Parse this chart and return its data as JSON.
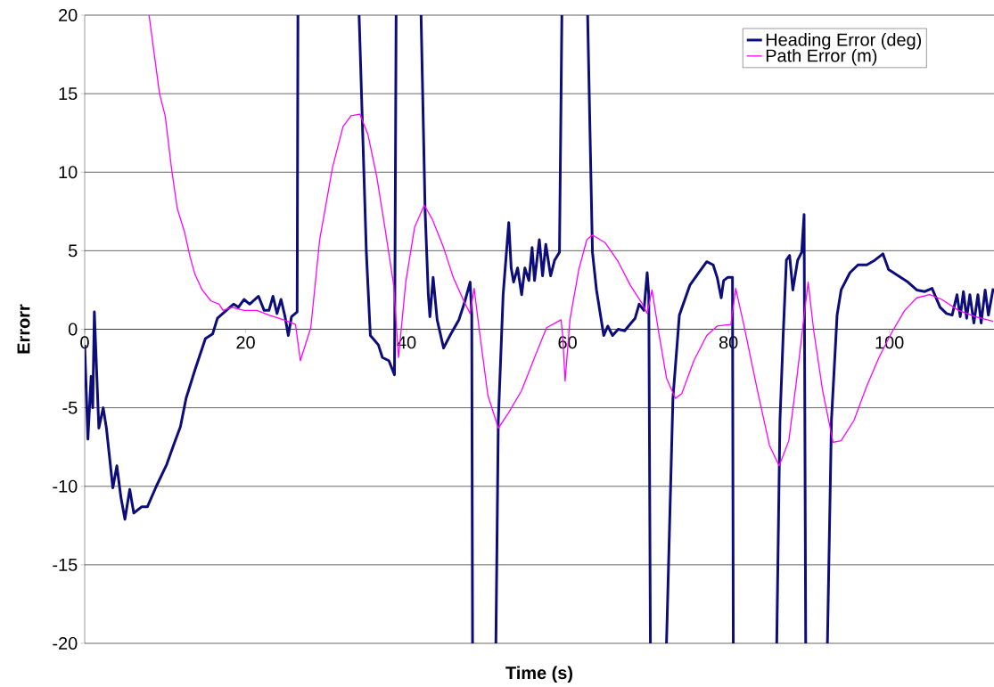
{
  "chart_data": {
    "type": "line",
    "xlabel": "Time (s)",
    "ylabel": "Errorr",
    "xlim": [
      0,
      113
    ],
    "ylim": [
      -20,
      20
    ],
    "xticks": [
      0,
      20,
      40,
      60,
      80,
      100
    ],
    "yticks": [
      -20,
      -15,
      -10,
      -5,
      0,
      5,
      10,
      15,
      20
    ],
    "grid": "y",
    "legend": "top right",
    "series": [
      {
        "name": "Heading Error (deg)",
        "color": "#0c0c7a",
        "x": [
          0,
          0.4,
          0.8,
          1.0,
          1.2,
          1.76,
          2.3,
          2.7,
          3.5,
          4.0,
          4.5,
          5.0,
          5.6,
          6.1,
          7.1,
          7.8,
          8.9,
          10.2,
          11.1,
          11.9,
          12.6,
          13.7,
          15.0,
          15.9,
          16.5,
          17.6,
          18.5,
          19.1,
          19.8,
          20.5,
          21.6,
          22.3,
          22.9,
          23.4,
          23.9,
          24.4,
          24.9,
          25.3,
          25.7,
          26.4,
          26.5,
          30,
          34.1,
          35.0,
          35.5,
          36.0,
          36.5,
          37.0,
          37.8,
          38.5,
          38.7,
          40,
          41.8,
          42.3,
          42.7,
          42.9,
          43.3,
          43.8,
          44.6,
          45.4,
          46.5,
          47.2,
          47.9,
          48.1,
          48.2,
          50,
          51.1,
          51.4,
          52.0,
          52.7,
          53.0,
          53.3,
          53.8,
          54.3,
          54.7,
          55.2,
          55.6,
          55.9,
          56.5,
          56.9,
          57.3,
          57.9,
          58.4,
          59.0,
          59.3,
          61,
          62.5,
          63.1,
          63.6,
          64.5,
          65.0,
          65.6,
          66.3,
          67.1,
          67.9,
          68.4,
          68.9,
          69.5,
          69.9,
          70.1,
          70.3,
          71,
          72.3,
          73.1,
          73.9,
          75.2,
          76.3,
          77.3,
          78.1,
          78.6,
          79.1,
          79.4,
          79.9,
          80.5,
          80.6,
          83,
          86.0,
          86.4,
          86.8,
          87.2,
          87.6,
          88.0,
          88.6,
          89.1,
          89.4,
          89.6,
          91,
          92.3,
          92.8,
          93.5,
          94.0,
          95.1,
          96.1,
          97.2,
          98.2,
          99.2,
          99.9,
          101.1,
          102.3,
          103.4,
          104.4,
          105.3,
          106.3,
          107.1,
          107.8,
          108.4,
          108.8,
          109.2,
          109.6,
          110.0,
          110.5,
          111.0,
          111.4,
          111.9,
          112.3,
          112.9
        ],
        "values": [
          -1,
          -7,
          -3,
          -5,
          1.1,
          -6.3,
          -5.0,
          -6.3,
          -10.1,
          -8.7,
          -10.7,
          -12.1,
          -10.2,
          -11.7,
          -11.3,
          -11.3,
          -10.0,
          -8.6,
          -7.3,
          -6.2,
          -4.4,
          -2.6,
          -0.6,
          -0.3,
          0.7,
          1.2,
          1.6,
          1.4,
          1.9,
          1.6,
          2.1,
          1.2,
          1.2,
          2.1,
          1.0,
          1.9,
          0.8,
          -0.4,
          0.8,
          1.1,
          20,
          null,
          20,
          4.9,
          -0.4,
          -0.7,
          -1.0,
          -1.8,
          -2.0,
          -2.9,
          20,
          null,
          20,
          7.6,
          2.2,
          0.8,
          3.3,
          0.6,
          -1.2,
          -0.4,
          0.6,
          1.7,
          3.0,
          0.9,
          -20,
          null,
          -20,
          -5.8,
          2.2,
          6.8,
          3.9,
          3.0,
          3.9,
          2.2,
          3.9,
          3.1,
          5.2,
          3.1,
          5.7,
          3.4,
          5.4,
          3.4,
          4.4,
          4.9,
          20,
          null,
          20,
          4.9,
          2.5,
          -0.4,
          0.2,
          -0.4,
          0,
          -0.1,
          0.4,
          0.7,
          1.6,
          1.2,
          3.6,
          2.2,
          -20,
          null,
          -20,
          -4.4,
          0.9,
          2.8,
          3.6,
          4.3,
          4.1,
          3.3,
          2.0,
          3.1,
          3.3,
          3.3,
          -20,
          null,
          -20,
          -5.8,
          -0.4,
          4.4,
          4.7,
          2.5,
          4.4,
          4.9,
          7.3,
          -20,
          null,
          -20,
          -5.8,
          0.9,
          2.5,
          3.6,
          4.1,
          4.1,
          4.4,
          4.8,
          3.8,
          3.4,
          3.0,
          2.5,
          2.4,
          2.6,
          1.4,
          1.0,
          0.9,
          2.2,
          0.8,
          2.4,
          0.7,
          2.2,
          0.4,
          2.2,
          0.4,
          2.5,
          0.9,
          2.6
        ]
      },
      {
        "name": "Path Error (m)",
        "color": "#ff00ff",
        "x": [
          8.0,
          9.3,
          10.0,
          10.8,
          11.5,
          12.4,
          13.1,
          13.7,
          14.6,
          15.7,
          16.7,
          17.2,
          18.3,
          19.8,
          21.4,
          22.9,
          24.7,
          26.2,
          26.8,
          28.1,
          29.2,
          30.8,
          32.1,
          33.1,
          34.2,
          35.2,
          36.3,
          37.3,
          38.4,
          39.0,
          39.9,
          41.0,
          42.2,
          43.2,
          44.6,
          45.8,
          47.2,
          47.9,
          48.4,
          49.0,
          50.1,
          51.4,
          52.7,
          54.3,
          55.9,
          57.4,
          58.5,
          59.2,
          59.4,
          59.7,
          60.3,
          61.4,
          62.4,
          63.1,
          64.7,
          66.3,
          67.8,
          69.2,
          69.9,
          70.5,
          71.4,
          72.3,
          73.4,
          74.2,
          75.7,
          77.3,
          78.6,
          80.3,
          80.9,
          81.9,
          83.6,
          85.1,
          86.3,
          87.5,
          88.5,
          89.3,
          89.9,
          90.6,
          91.7,
          93.0,
          94.0,
          95.6,
          97.2,
          98.7,
          100.3,
          101.9,
          103.4,
          105.0,
          106.5,
          108.6,
          110.7,
          112.9
        ],
        "values": [
          20,
          15.0,
          13.6,
          10.2,
          7.7,
          6.2,
          4.6,
          3.5,
          2.5,
          1.8,
          1.6,
          1.2,
          1.4,
          1.2,
          1.2,
          0.9,
          0.6,
          0.3,
          -2.0,
          0.1,
          5.7,
          10.3,
          12.9,
          13.6,
          13.7,
          12.4,
          9.7,
          6.5,
          2.8,
          -1.8,
          3.0,
          6.5,
          7.9,
          7.0,
          5.2,
          3.3,
          1.7,
          1.0,
          2.6,
          0.1,
          -4.2,
          -6.3,
          -5.3,
          -3.9,
          -1.8,
          0.1,
          0.4,
          0.6,
          -0.4,
          -3.3,
          0.6,
          3.8,
          5.7,
          6.0,
          5.5,
          4.3,
          2.8,
          1.7,
          1.0,
          2.5,
          -0.4,
          -3.1,
          -4.4,
          -4.1,
          -2.0,
          -0.4,
          0.2,
          0.3,
          2.6,
          0.3,
          -3.9,
          -7.4,
          -8.7,
          -7.1,
          -3.1,
          0.4,
          3.0,
          -0.1,
          -3.9,
          -7.2,
          -7.1,
          -5.8,
          -3.6,
          -1.8,
          -0.2,
          1.2,
          2.0,
          2.2,
          1.9,
          1.2,
          0.8,
          0.5
        ]
      }
    ]
  }
}
